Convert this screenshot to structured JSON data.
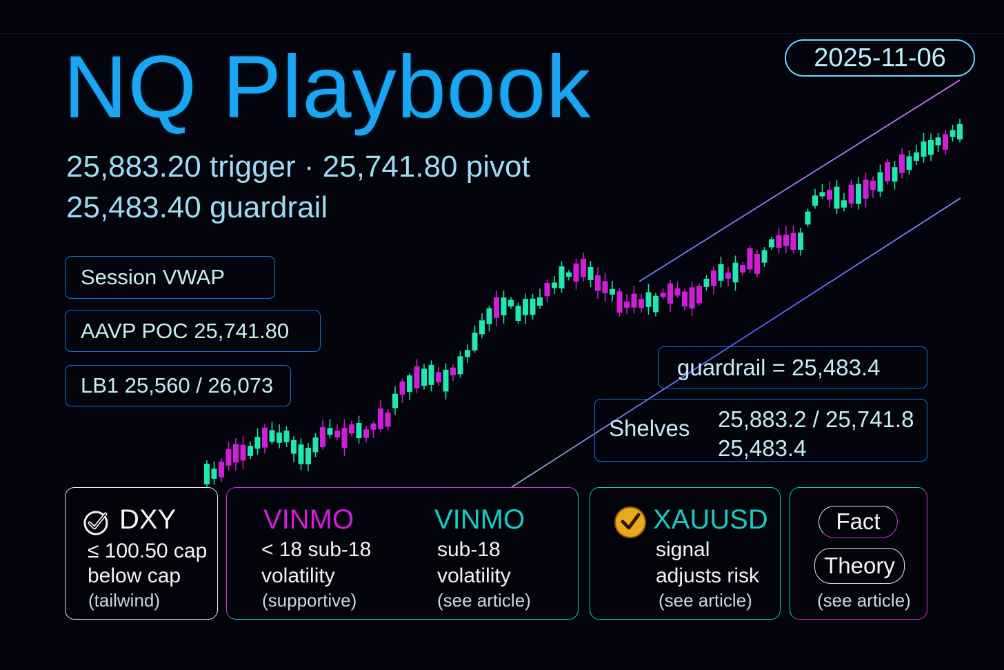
{
  "header": {
    "title": "NQ Playbook",
    "date": "2025-11-06",
    "levels_line1": "25,883.20 trigger · 25,741.80 pivot",
    "levels_line2": "25,483.40 guardrail"
  },
  "chips": {
    "vwap": "Session VWAP",
    "poc": "AAVP POC 25,741.80",
    "lb1": "LB1 25,560 / 26,073",
    "guardrail": "guardrail = 25,483.4",
    "shelves_label": "Shelves",
    "shelves_line1": "25,883.2 / 25,741.8",
    "shelves_line2": "25,483.4"
  },
  "cards": {
    "dxy": {
      "icon": "check-circle-icon",
      "title": "DXY",
      "line1": "≤ 100.50 cap",
      "line2": "below cap",
      "line3": "(tailwind)"
    },
    "vinmo_left": {
      "title": "VINMO",
      "line1": "< 18 sub-18",
      "line2": "volatility",
      "line3": "(supportive)"
    },
    "vinmo_right": {
      "title": "VINMO",
      "line1": "sub-18",
      "line2": "volatility",
      "line3": "(see article)"
    },
    "xauusd": {
      "icon": "gold-check-badge-icon",
      "title": "XAUUSD",
      "line1": "signal",
      "line2": "adjusts risk",
      "line3": "(see article)"
    },
    "fact_theory": {
      "fact": "Fact",
      "theory": "Theory",
      "note": "(see article)"
    }
  },
  "colors": {
    "background": "#03040c",
    "title_blue": "#1aa6f2",
    "bull_candle": "#1de9b0",
    "bear_candle": "#d11fd8",
    "magenta": "#d234d8",
    "cyan": "#19c9c4",
    "gold": "#e8a91c"
  }
}
